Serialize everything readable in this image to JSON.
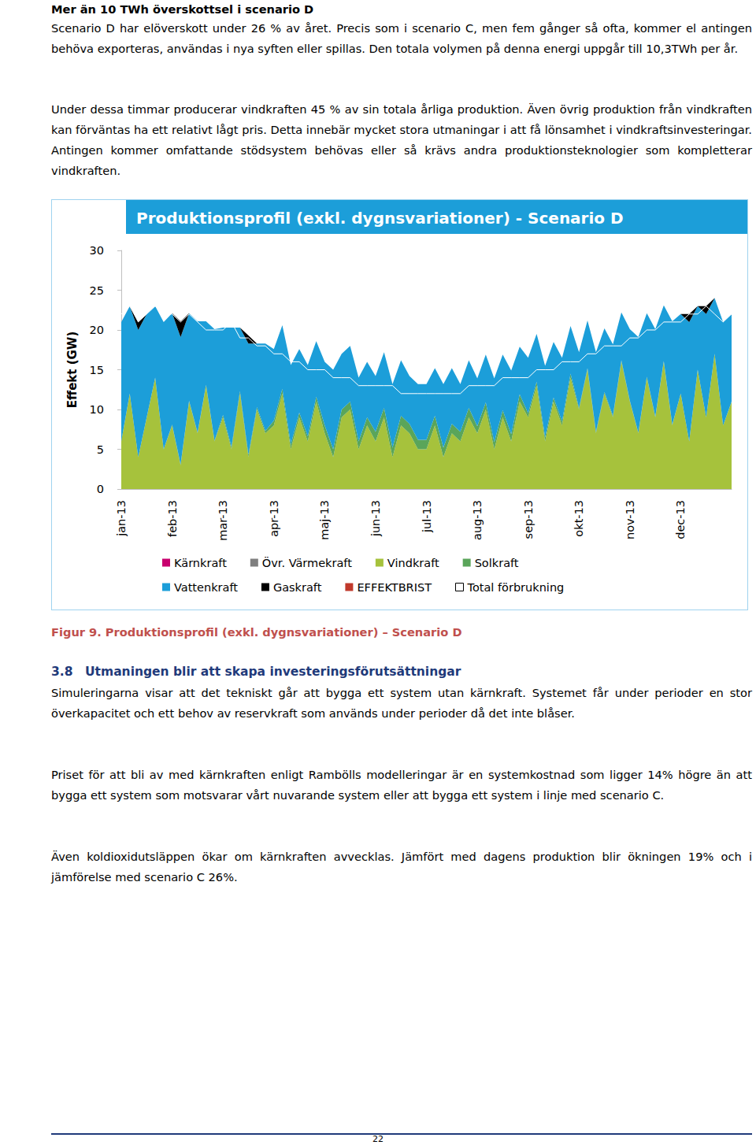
{
  "page": {
    "heading": "Mer än 10 TWh överskottsel i scenario D",
    "paragraphs": [
      "Scenario D har elöverskott under 26 % av året. Precis som i scenario C, men fem gånger så ofta, kommer el antingen behöva exporteras, användas i nya syften eller spillas. Den totala volymen på denna energi uppgår till 10,3TWh per år.",
      "Under dessa timmar producerar vindkraften 45 % av sin totala årliga produktion. Även övrig produktion från vindkraften kan förväntas ha ett relativt lågt pris. Detta innebär mycket stora utmaningar i att få lönsamhet i vindkraftsinvesteringar. Antingen kommer omfattande stödsystem behövas eller så krävs andra produktionsteknologier som kompletterar vindkraften."
    ],
    "caption": "Figur 9. Produktionsprofil (exkl. dygnsvariationer) – Scenario D",
    "section": {
      "number": "3.8",
      "title": "Utmaningen blir att skapa investeringsförutsättningar",
      "paragraphs": [
        "Simuleringarna visar att det tekniskt går att bygga ett system utan kärnkraft. Systemet får under perioder en stor överkapacitet och ett behov av reservkraft som används under perioder då det inte blåser.",
        "Priset för att bli av med kärnkraften enligt Rambölls modelleringar är en systemkostnad som ligger 14% högre än att bygga ett system som motsvarar vårt nuvarande system eller att bygga ett system i linje med scenario C.",
        "Även koldioxidutsläppen ökar om kärnkraften avvecklas. Jämfört med dagens produktion blir ökningen 19% och i jämförelse med scenario C 26%."
      ]
    },
    "page_number": "22"
  },
  "chart_data": {
    "type": "area",
    "title": "Produktionsprofil (exkl. dygnsvariationer) - Scenario D",
    "y_label": "Effekt (GW)",
    "stacked": true,
    "grid": false,
    "legend": "bottom",
    "categories": [
      "jan-13",
      null,
      null,
      null,
      null,
      null,
      "feb-13",
      null,
      null,
      null,
      null,
      null,
      "mar-13",
      null,
      null,
      null,
      null,
      null,
      "apr-13",
      null,
      null,
      null,
      null,
      null,
      "maj-13",
      null,
      null,
      null,
      null,
      null,
      "jun-13",
      null,
      null,
      null,
      null,
      null,
      "jul-13",
      null,
      null,
      null,
      null,
      null,
      "aug-13",
      null,
      null,
      null,
      null,
      null,
      "sep-13",
      null,
      null,
      null,
      null,
      null,
      "okt-13",
      null,
      null,
      null,
      null,
      null,
      "nov-13",
      null,
      null,
      null,
      null,
      null,
      "dec-13",
      null,
      null,
      null,
      null,
      null,
      null
    ],
    "ylim": [
      0,
      30
    ],
    "yticks": [
      0,
      5,
      10,
      15,
      20,
      25,
      30
    ],
    "series": [
      {
        "name": "Kärnkraft",
        "color": "#c8006e",
        "values": [
          0,
          0,
          0,
          0,
          0,
          0,
          0,
          0,
          0,
          0,
          0,
          0,
          0,
          0,
          0,
          0,
          0,
          0,
          0,
          0,
          0,
          0,
          0,
          0,
          0,
          0,
          0,
          0,
          0,
          0,
          0,
          0,
          0,
          0,
          0,
          0,
          0,
          0,
          0,
          0,
          0,
          0,
          0,
          0,
          0,
          0,
          0,
          0,
          0,
          0,
          0,
          0,
          0,
          0,
          0,
          0,
          0,
          0,
          0,
          0,
          0,
          0,
          0,
          0,
          0,
          0,
          0,
          0,
          0,
          0,
          0,
          0,
          0
        ]
      },
      {
        "name": "Övr. Värmekraft",
        "color": "#7f7f7f",
        "values": [
          0,
          0,
          0,
          0,
          0,
          0,
          0,
          0,
          0,
          0,
          0,
          0,
          0,
          0,
          0,
          0,
          0,
          0,
          0,
          0,
          0,
          0,
          0,
          0,
          0,
          0,
          0,
          0,
          0,
          0,
          0,
          0,
          0,
          0,
          0,
          0,
          0,
          0,
          0,
          0,
          0,
          0,
          0,
          0,
          0,
          0,
          0,
          0,
          0,
          0,
          0,
          0,
          0,
          0,
          0,
          0,
          0,
          0,
          0,
          0,
          0,
          0,
          0,
          0,
          0,
          0,
          0,
          0,
          0,
          0,
          0,
          0,
          0
        ]
      },
      {
        "name": "Vindkraft",
        "color": "#a6c23c",
        "values": [
          6,
          12,
          4,
          9,
          14,
          5,
          8,
          3,
          11,
          7,
          13,
          6,
          9,
          5,
          12,
          4,
          10,
          7,
          8,
          12,
          5,
          9,
          6,
          11,
          7,
          4,
          9,
          10,
          5,
          8,
          6,
          9,
          4,
          8,
          7,
          5,
          5,
          8,
          4,
          7,
          6,
          9,
          7,
          10,
          5,
          9,
          6,
          11,
          9,
          13,
          6,
          11,
          8,
          14,
          10,
          15,
          7,
          12,
          9,
          16,
          11,
          7,
          14,
          9,
          16,
          8,
          12,
          6,
          15,
          9,
          17,
          8,
          11
        ]
      },
      {
        "name": "Solkraft",
        "color": "#5aa55a",
        "values": [
          0,
          0,
          0,
          0,
          0,
          0,
          0.1,
          0.1,
          0.1,
          0.1,
          0.1,
          0.1,
          0.3,
          0.3,
          0.3,
          0.3,
          0.3,
          0.3,
          0.6,
          0.6,
          0.6,
          0.6,
          0.6,
          0.6,
          1,
          1,
          1,
          1,
          1,
          1,
          1.2,
          1.2,
          1.2,
          1.2,
          1.2,
          1.2,
          1.2,
          1.2,
          1.2,
          1.2,
          1.2,
          1.2,
          0.9,
          0.9,
          0.9,
          0.9,
          0.9,
          0.9,
          0.5,
          0.5,
          0.5,
          0.5,
          0.5,
          0.5,
          0.2,
          0.2,
          0.2,
          0.2,
          0.2,
          0.2,
          0.1,
          0.1,
          0.1,
          0.1,
          0.1,
          0.1,
          0,
          0,
          0,
          0,
          0,
          0,
          0
        ]
      },
      {
        "name": "Vattenkraft",
        "color": "#1c9ed9",
        "values": [
          15,
          11,
          16,
          13,
          9,
          16,
          14,
          16,
          11,
          14,
          8,
          14,
          11,
          15,
          8,
          14,
          8,
          11,
          9,
          8,
          10,
          8,
          9,
          7,
          8,
          10,
          7,
          7,
          8,
          7,
          7,
          7,
          8,
          7,
          6,
          7,
          7,
          6,
          8,
          7,
          6,
          6,
          6,
          6,
          8,
          7,
          8,
          6,
          7,
          6,
          9,
          7,
          8,
          6,
          7,
          6,
          10,
          8,
          9,
          6,
          9,
          12,
          8,
          11,
          7,
          13,
          10,
          15,
          8,
          13,
          7,
          13,
          11
        ]
      },
      {
        "name": "Gaskraft",
        "color": "#000000",
        "values": [
          0,
          0,
          1,
          0,
          0,
          0,
          0,
          2,
          0,
          0,
          0,
          0,
          0,
          0,
          0,
          1,
          0,
          0,
          0,
          0,
          0,
          0,
          0,
          0,
          0,
          0,
          0,
          0,
          0,
          0,
          0,
          0,
          0,
          0,
          0,
          0,
          0,
          0,
          0,
          0,
          0,
          0,
          0,
          0,
          0,
          0,
          0,
          0,
          0,
          0,
          0,
          0,
          0,
          0,
          0,
          0,
          0,
          0,
          0,
          0,
          0,
          0,
          0,
          0,
          0,
          0,
          0,
          1,
          0,
          1,
          0,
          0,
          0
        ]
      },
      {
        "name": "EFFEKTBRIST",
        "color": "#c0392b",
        "values": [
          0,
          0,
          0,
          0,
          0,
          0,
          0,
          0,
          0,
          0,
          0,
          0,
          0,
          0,
          0,
          0,
          0,
          0,
          0,
          0,
          0,
          0,
          0,
          0,
          0,
          0,
          0,
          0,
          0,
          0,
          0,
          0,
          0,
          0,
          0,
          0,
          0,
          0,
          0,
          0,
          0,
          0,
          0,
          0,
          0,
          0,
          0,
          0,
          0,
          0,
          0,
          0,
          0,
          0,
          0,
          0,
          0,
          0,
          0,
          0,
          0,
          0,
          0,
          0,
          0,
          0,
          0,
          0,
          0,
          0,
          0,
          0,
          0
        ]
      },
      {
        "name": "Total förbrukning",
        "type": "line",
        "color": "#ffffff",
        "values": [
          22,
          23,
          21,
          22,
          23,
          22,
          22,
          21,
          22,
          21,
          20,
          20,
          20,
          21,
          19,
          19,
          18,
          18,
          17,
          17,
          16,
          16,
          15,
          15,
          15,
          14,
          14,
          14,
          13,
          13,
          13,
          13,
          13,
          12,
          12,
          12,
          12,
          12,
          12,
          12,
          12,
          13,
          13,
          13,
          13,
          14,
          14,
          14,
          14,
          15,
          15,
          15,
          16,
          16,
          16,
          17,
          17,
          18,
          18,
          18,
          19,
          19,
          20,
          20,
          21,
          21,
          21,
          22,
          22,
          23,
          22,
          21,
          22
        ]
      }
    ]
  }
}
